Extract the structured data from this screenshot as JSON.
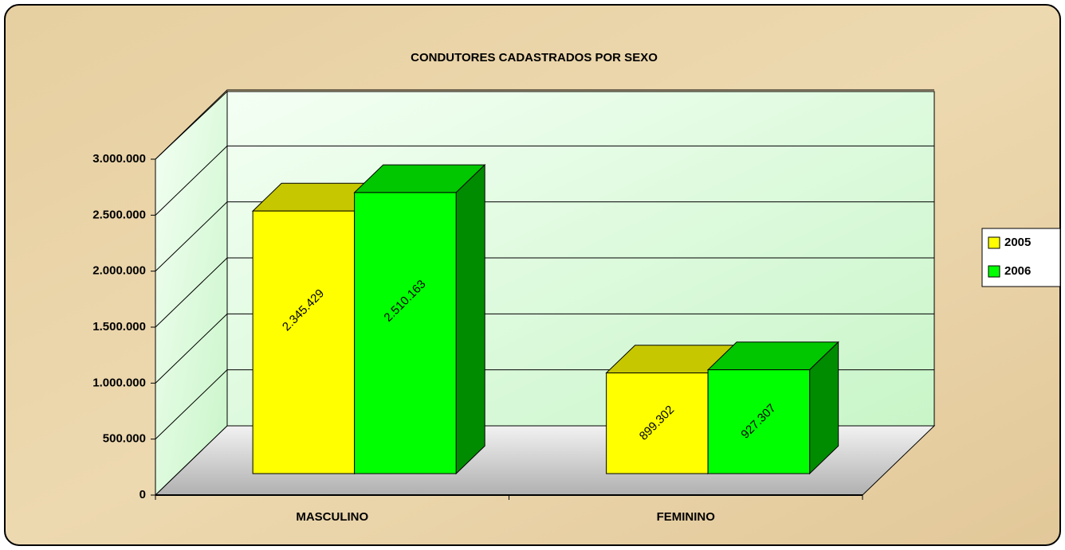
{
  "chart_data": {
    "type": "bar3d",
    "title": "CONDUTORES CADASTRADOS POR SEXO",
    "categories": [
      "MASCULINO",
      "FEMININO"
    ],
    "series": [
      {
        "name": "2005",
        "color": "#ffff00",
        "values": [
          2345429,
          899302
        ],
        "value_labels": [
          "2.345.429",
          "899.302"
        ]
      },
      {
        "name": "2006",
        "color": "#00ff00",
        "values": [
          2510163,
          927307
        ],
        "value_labels": [
          "2.510.163",
          "927.307"
        ]
      }
    ],
    "ylim": [
      0,
      3000000
    ],
    "yticks": [
      0,
      {
        "value": 500000,
        "label": "500.000"
      },
      {
        "value": 1000000,
        "label": "1.000.000"
      },
      {
        "value": 1500000,
        "label": "1.500.000"
      },
      {
        "value": 2000000,
        "label": "2.000.000"
      },
      {
        "value": 2500000,
        "label": "2.500.000"
      },
      {
        "value": 3000000,
        "label": "3.000.000"
      }
    ],
    "grid": true,
    "legend": "right"
  }
}
